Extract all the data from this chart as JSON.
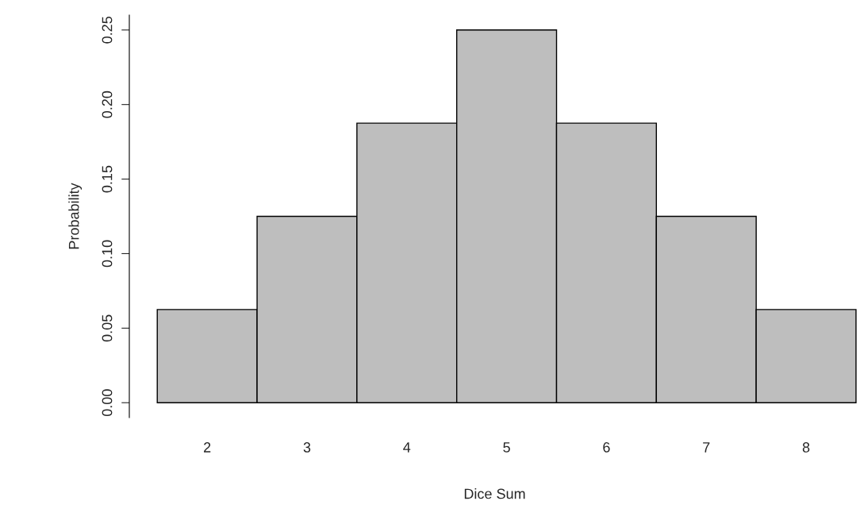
{
  "chart_data": {
    "type": "bar",
    "xlabel": "Dice Sum",
    "ylabel": "Probability",
    "categories": [
      "2",
      "3",
      "4",
      "5",
      "6",
      "7",
      "8"
    ],
    "values": [
      0.0625,
      0.125,
      0.1875,
      0.25,
      0.1875,
      0.125,
      0.0625
    ],
    "color": "#bebebe",
    "ylim": [
      -0.01,
      0.26
    ],
    "yticks": [
      {
        "value": 0,
        "label": "0.00"
      },
      {
        "value": 0.05,
        "label": "0.05"
      },
      {
        "value": 0.1,
        "label": "0.10"
      },
      {
        "value": 0.15,
        "label": "0.15"
      },
      {
        "value": 0.2,
        "label": "0.20"
      },
      {
        "value": 0.25,
        "label": "0.25"
      }
    ],
    "grid": false
  }
}
